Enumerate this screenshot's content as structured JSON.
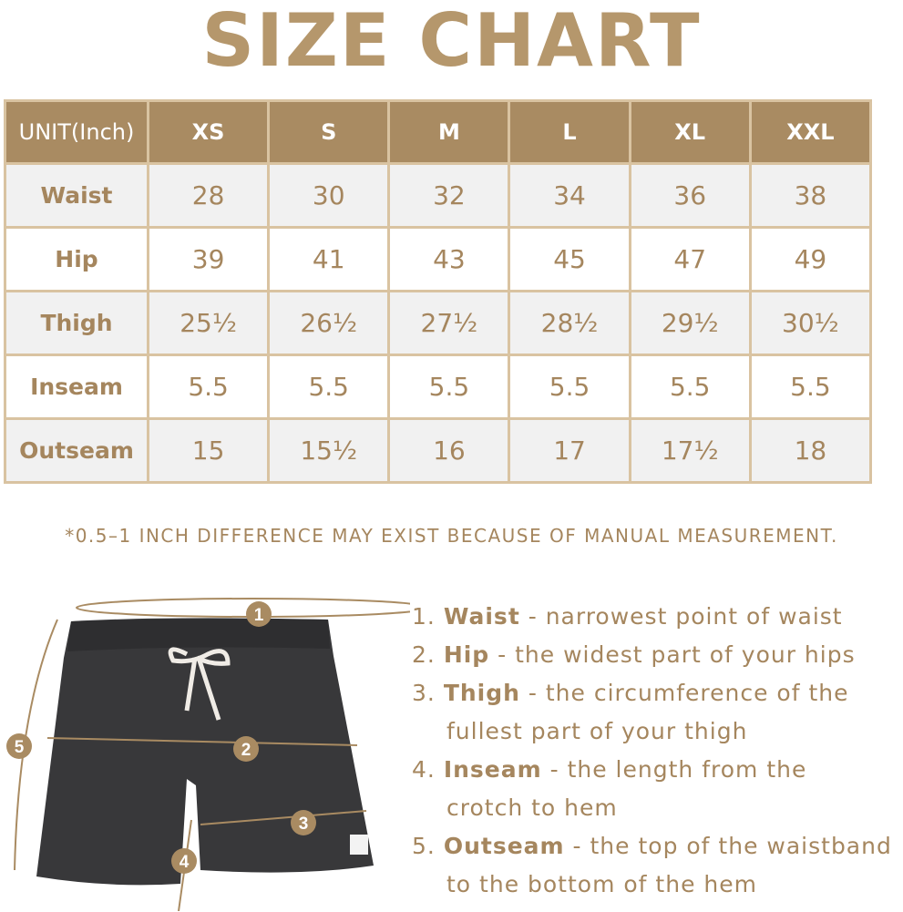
{
  "title": "SIZE CHART",
  "table": {
    "headers": [
      "UNIT(Inch)",
      "XS",
      "S",
      "M",
      "L",
      "XL",
      "XXL"
    ],
    "rows": [
      {
        "label": "Waist",
        "values": [
          "28",
          "30",
          "32",
          "34",
          "36",
          "38"
        ]
      },
      {
        "label": "Hip",
        "values": [
          "39",
          "41",
          "43",
          "45",
          "47",
          "49"
        ]
      },
      {
        "label": "Thigh",
        "values": [
          "25½",
          "26½",
          "27½",
          "28½",
          "29½",
          "30½"
        ]
      },
      {
        "label": "Inseam",
        "values": [
          "5.5",
          "5.5",
          "5.5",
          "5.5",
          "5.5",
          "5.5"
        ]
      },
      {
        "label": "Outseam",
        "values": [
          "15",
          "15½",
          "16",
          "17",
          "17½",
          "18"
        ]
      }
    ]
  },
  "note": "*0.5–1 INCH DIFFERENCE MAY EXIST BECAUSE OF MANUAL MEASUREMENT.",
  "diagram_markers": [
    "1",
    "2",
    "3",
    "4",
    "5"
  ],
  "definitions": [
    {
      "num": "1.",
      "term": "Waist",
      "desc": " - narrowest point of waist",
      "cont": ""
    },
    {
      "num": "2.",
      "term": "Hip",
      "desc": " - the widest part of your hips",
      "cont": ""
    },
    {
      "num": "3.",
      "term": "Thigh",
      "desc": " - the circumference of the",
      "cont": "fullest part of your thigh"
    },
    {
      "num": "4.",
      "term": "Inseam",
      "desc": " - the length from the",
      "cont": "crotch to hem"
    },
    {
      "num": "5.",
      "term": "Outseam",
      "desc": " - the top of the waistband",
      "cont": "to the bottom of the hem"
    }
  ],
  "colors": {
    "accent": "#a98b62",
    "title": "#b5976c",
    "grid": "#d9c3a1",
    "text": "#a5865e",
    "garment": "#38383a"
  }
}
